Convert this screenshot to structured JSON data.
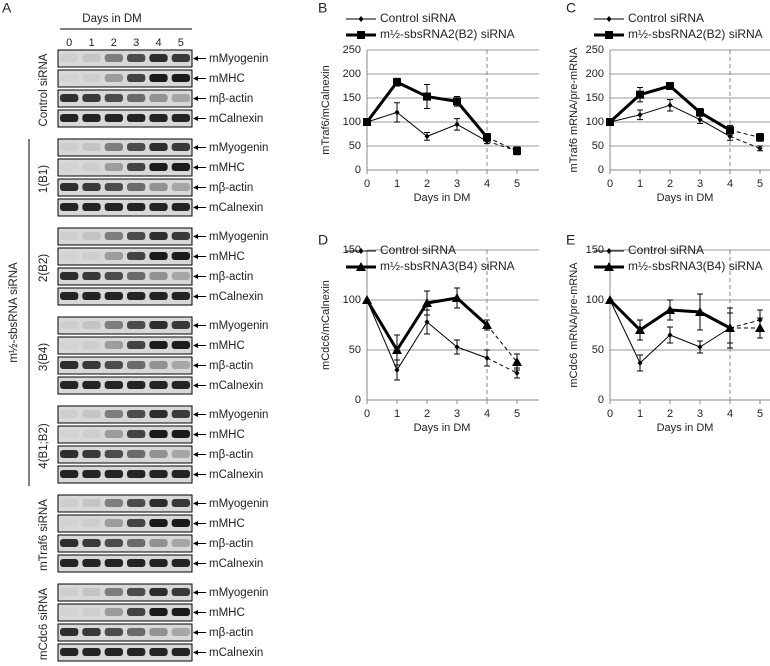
{
  "panel_a": {
    "label": "A",
    "header": "Days in DM",
    "lanes": [
      "0",
      "1",
      "2",
      "3",
      "4",
      "5"
    ],
    "sections": [
      {
        "name": "Control siRNA",
        "blots": [
          "mMyogenin",
          "mMHC",
          "mβ-actin",
          "mCalnexin"
        ]
      },
      {
        "name": "m½-sbsRNA siRNA",
        "subgroups": [
          {
            "name": "1(B1)",
            "blots": [
              "mMyogenin",
              "mMHC",
              "mβ-actin",
              "mCalnexin"
            ]
          },
          {
            "name": "2(B2)",
            "blots": [
              "mMyogenin",
              "mMHC",
              "mβ-actin",
              "mCalnexin"
            ]
          },
          {
            "name": "3(B4)",
            "blots": [
              "mMyogenin",
              "mMHC",
              "mβ-actin",
              "mCalnexin"
            ]
          },
          {
            "name": "4(B1;B2)",
            "blots": [
              "mMyogenin",
              "mMHC",
              "mβ-actin",
              "mCalnexin"
            ]
          }
        ]
      },
      {
        "name": "mTraf6 siRNA",
        "blots": [
          "mMyogenin",
          "mMHC",
          "mβ-actin",
          "mCalnexin"
        ]
      },
      {
        "name": "mCdc6 siRNA",
        "blots": [
          "mMyogenin",
          "mMHC",
          "mβ-actin",
          "mCalnexin"
        ]
      }
    ]
  },
  "chart_data": [
    {
      "type": "line",
      "label": "B",
      "ylabel": "mTraf6/mCalnexin",
      "xlabel": "Days in DM",
      "x": [
        0,
        1,
        2,
        3,
        4,
        5
      ],
      "xlim": [
        0,
        5
      ],
      "xticks": [
        0,
        1,
        2,
        3,
        4,
        5
      ],
      "ylim": [
        0,
        250
      ],
      "yticks": [
        0,
        50,
        100,
        150,
        200,
        250
      ],
      "grid": true,
      "vline": 4,
      "legend": "upper left",
      "series": [
        {
          "name": "Control siRNA",
          "color": "#000000",
          "marker": "diamond",
          "line_width": 1,
          "values": [
            100,
            120,
            70,
            95,
            60,
            40
          ],
          "errors": [
            0,
            20,
            8,
            12,
            5,
            8
          ]
        },
        {
          "name": "m½-sbsRNA2(B2) siRNA",
          "color": "#000000",
          "marker": "square",
          "line_width": 3,
          "values": [
            100,
            183,
            153,
            143,
            68,
            40
          ],
          "errors": [
            0,
            8,
            25,
            10,
            8,
            8
          ]
        }
      ]
    },
    {
      "type": "line",
      "label": "C",
      "ylabel": "mTraf6 mRNA/pre-mRNA",
      "xlabel": "Days in DM",
      "x": [
        0,
        1,
        2,
        3,
        4,
        5
      ],
      "xlim": [
        0,
        5
      ],
      "xticks": [
        0,
        1,
        2,
        3,
        4,
        5
      ],
      "ylim": [
        0,
        250
      ],
      "yticks": [
        0,
        50,
        100,
        150,
        200,
        250
      ],
      "grid": true,
      "vline": 4,
      "legend": "upper left",
      "series": [
        {
          "name": "Control siRNA",
          "color": "#000000",
          "marker": "diamond",
          "line_width": 1,
          "values": [
            100,
            115,
            135,
            105,
            70,
            45
          ],
          "errors": [
            0,
            10,
            12,
            8,
            8,
            5
          ]
        },
        {
          "name": "m½-sbsRNA2(B2) siRNA",
          "color": "#000000",
          "marker": "square",
          "line_width": 3,
          "values": [
            100,
            157,
            175,
            120,
            83,
            68
          ],
          "errors": [
            0,
            15,
            3,
            8,
            10,
            8
          ]
        }
      ]
    },
    {
      "type": "line",
      "label": "D",
      "ylabel": "mCdc6/mCalnexin",
      "xlabel": "Days in DM",
      "x": [
        0,
        1,
        2,
        3,
        4,
        5
      ],
      "xlim": [
        0,
        5
      ],
      "xticks": [
        0,
        1,
        2,
        3,
        4,
        5
      ],
      "ylim": [
        0,
        150
      ],
      "yticks": [
        0,
        50,
        100,
        150
      ],
      "grid": true,
      "vline": 4,
      "legend": "upper left",
      "series": [
        {
          "name": "Control siRNA",
          "color": "#000000",
          "marker": "diamond",
          "line_width": 1,
          "values": [
            100,
            30,
            78,
            53,
            42,
            27
          ],
          "errors": [
            0,
            10,
            12,
            7,
            8,
            5
          ]
        },
        {
          "name": "m½-sbsRNA3(B4) siRNA",
          "color": "#000000",
          "marker": "triangle",
          "line_width": 3,
          "values": [
            100,
            50,
            97,
            102,
            75,
            38
          ],
          "errors": [
            0,
            15,
            12,
            10,
            5,
            8
          ]
        }
      ]
    },
    {
      "type": "line",
      "label": "E",
      "ylabel": "mCdc6 mRNA/pre-mRNA",
      "xlabel": "Days in DM",
      "x": [
        0,
        1,
        2,
        3,
        4,
        5
      ],
      "xlim": [
        0,
        5
      ],
      "xticks": [
        0,
        1,
        2,
        3,
        4,
        5
      ],
      "ylim": [
        0,
        150
      ],
      "yticks": [
        0,
        50,
        100,
        150
      ],
      "grid": true,
      "vline": 4,
      "legend": "upper left",
      "series": [
        {
          "name": "Control siRNA",
          "color": "#000000",
          "marker": "diamond",
          "line_width": 1,
          "values": [
            100,
            37,
            65,
            53,
            72,
            80
          ],
          "errors": [
            0,
            8,
            8,
            6,
            20,
            10
          ]
        },
        {
          "name": "m½-sbsRNA3(B4) siRNA",
          "color": "#000000",
          "marker": "triangle",
          "line_width": 3,
          "values": [
            100,
            70,
            90,
            88,
            72,
            72
          ],
          "errors": [
            0,
            10,
            10,
            18,
            15,
            10
          ]
        }
      ]
    }
  ]
}
